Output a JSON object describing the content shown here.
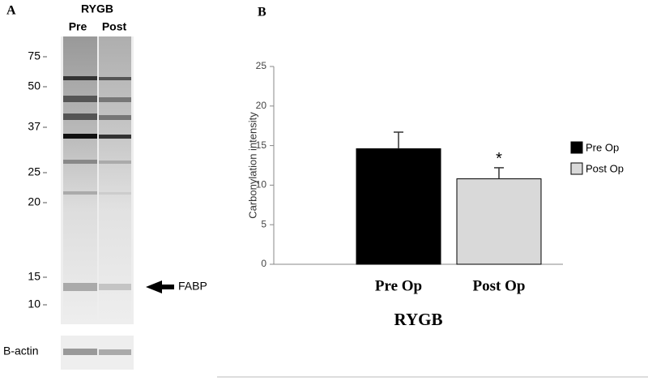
{
  "panel_a": {
    "label": "A",
    "header": "RYGB",
    "lanes": [
      "Pre",
      "Post"
    ],
    "markers": [
      "75",
      "50",
      "37",
      "25",
      "20",
      "15",
      "10"
    ],
    "band_label": "FABP",
    "loading_label": "B-actin"
  },
  "panel_b_label": "B",
  "chart_data": {
    "type": "bar",
    "ylabel": "Carbonylation intensity",
    "xlabel": "RYGB",
    "categories": [
      "Pre Op",
      "Post Op"
    ],
    "values": [
      14.6,
      10.8
    ],
    "errors": [
      2.1,
      1.4
    ],
    "colors": [
      "#000000",
      "#d9d9d9"
    ],
    "annotation": "*",
    "ylim": [
      0,
      25
    ],
    "yticks": [
      0,
      5,
      10,
      15,
      20,
      25
    ],
    "grid": false,
    "legend": "right"
  }
}
